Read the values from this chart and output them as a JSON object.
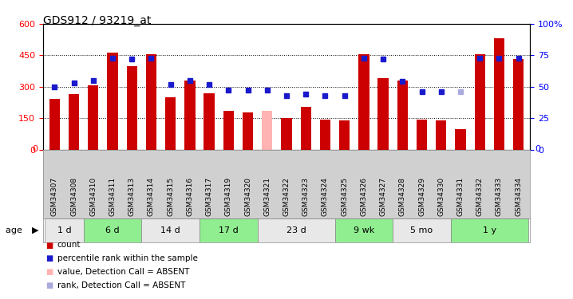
{
  "title": "GDS912 / 93219_at",
  "samples": [
    "GSM34307",
    "GSM34308",
    "GSM34310",
    "GSM34311",
    "GSM34313",
    "GSM34314",
    "GSM34315",
    "GSM34316",
    "GSM34317",
    "GSM34319",
    "GSM34320",
    "GSM34321",
    "GSM34322",
    "GSM34323",
    "GSM34324",
    "GSM34325",
    "GSM34326",
    "GSM34327",
    "GSM34328",
    "GSM34329",
    "GSM34330",
    "GSM34331",
    "GSM34332",
    "GSM34333",
    "GSM34334"
  ],
  "counts": [
    242,
    265,
    305,
    462,
    400,
    455,
    248,
    330,
    270,
    185,
    178,
    185,
    152,
    205,
    143,
    140,
    455,
    340,
    330,
    143,
    140,
    98,
    455,
    530,
    432
  ],
  "rank_values": [
    50,
    53,
    55,
    73,
    72,
    73,
    52,
    55,
    52,
    47,
    47,
    47,
    43,
    44,
    43,
    43,
    73,
    72,
    54,
    46,
    46,
    46,
    73,
    73,
    73
  ],
  "absent_bar": [
    false,
    false,
    false,
    false,
    false,
    false,
    false,
    false,
    false,
    false,
    false,
    true,
    false,
    false,
    false,
    false,
    false,
    false,
    false,
    false,
    false,
    false,
    false,
    false,
    false
  ],
  "absent_rank": [
    false,
    false,
    false,
    false,
    false,
    false,
    false,
    false,
    false,
    false,
    false,
    false,
    false,
    false,
    false,
    false,
    false,
    false,
    false,
    false,
    false,
    true,
    false,
    false,
    false
  ],
  "age_groups": [
    {
      "label": "1 d",
      "start": 0,
      "end": 2
    },
    {
      "label": "6 d",
      "start": 2,
      "end": 5
    },
    {
      "label": "14 d",
      "start": 5,
      "end": 8
    },
    {
      "label": "17 d",
      "start": 8,
      "end": 11
    },
    {
      "label": "23 d",
      "start": 11,
      "end": 15
    },
    {
      "label": "9 wk",
      "start": 15,
      "end": 18
    },
    {
      "label": "5 mo",
      "start": 18,
      "end": 21
    },
    {
      "label": "1 y",
      "start": 21,
      "end": 25
    }
  ],
  "bar_color": "#cc0000",
  "absent_bar_color": "#ffb3b3",
  "rank_color": "#1a1acc",
  "absent_rank_color": "#aaaadd",
  "bg_color": "#ffffff",
  "plot_bg": "#ffffff",
  "ylim_left": [
    0,
    600
  ],
  "ylim_right": [
    0,
    100
  ],
  "yticks_left": [
    0,
    150,
    300,
    450,
    600
  ],
  "yticks_right": [
    0,
    25,
    50,
    75,
    100
  ],
  "title_fontsize": 10,
  "age_group_colors": [
    "#e8e8e8",
    "#90ee90"
  ],
  "xlabel_bg": "#d0d0d0",
  "legend_items": [
    {
      "color": "#cc0000",
      "label": "count"
    },
    {
      "color": "#1a1acc",
      "label": "percentile rank within the sample"
    },
    {
      "color": "#ffb3b3",
      "label": "value, Detection Call = ABSENT"
    },
    {
      "color": "#aaaadd",
      "label": "rank, Detection Call = ABSENT"
    }
  ]
}
